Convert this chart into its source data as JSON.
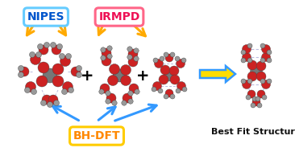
{
  "bg_color": "#ffffff",
  "nipes_label": "NIPES",
  "nipes_box_color": "#66ccff",
  "nipes_text_color": "#0055cc",
  "irmpd_label": "IRMPD",
  "irmpd_box_color": "#ff6688",
  "irmpd_text_color": "#ee1155",
  "bhdft_label": "BH-DFT",
  "bhdft_box_color": "#ffcc00",
  "bhdft_text_color": "#ff8800",
  "best_fit_label": "Best Fit Structure",
  "best_fit_color": "#111111",
  "arrow_color_gold": "#ffaa00",
  "arrow_color_blue": "#3399ff",
  "plus_color": "#000000"
}
